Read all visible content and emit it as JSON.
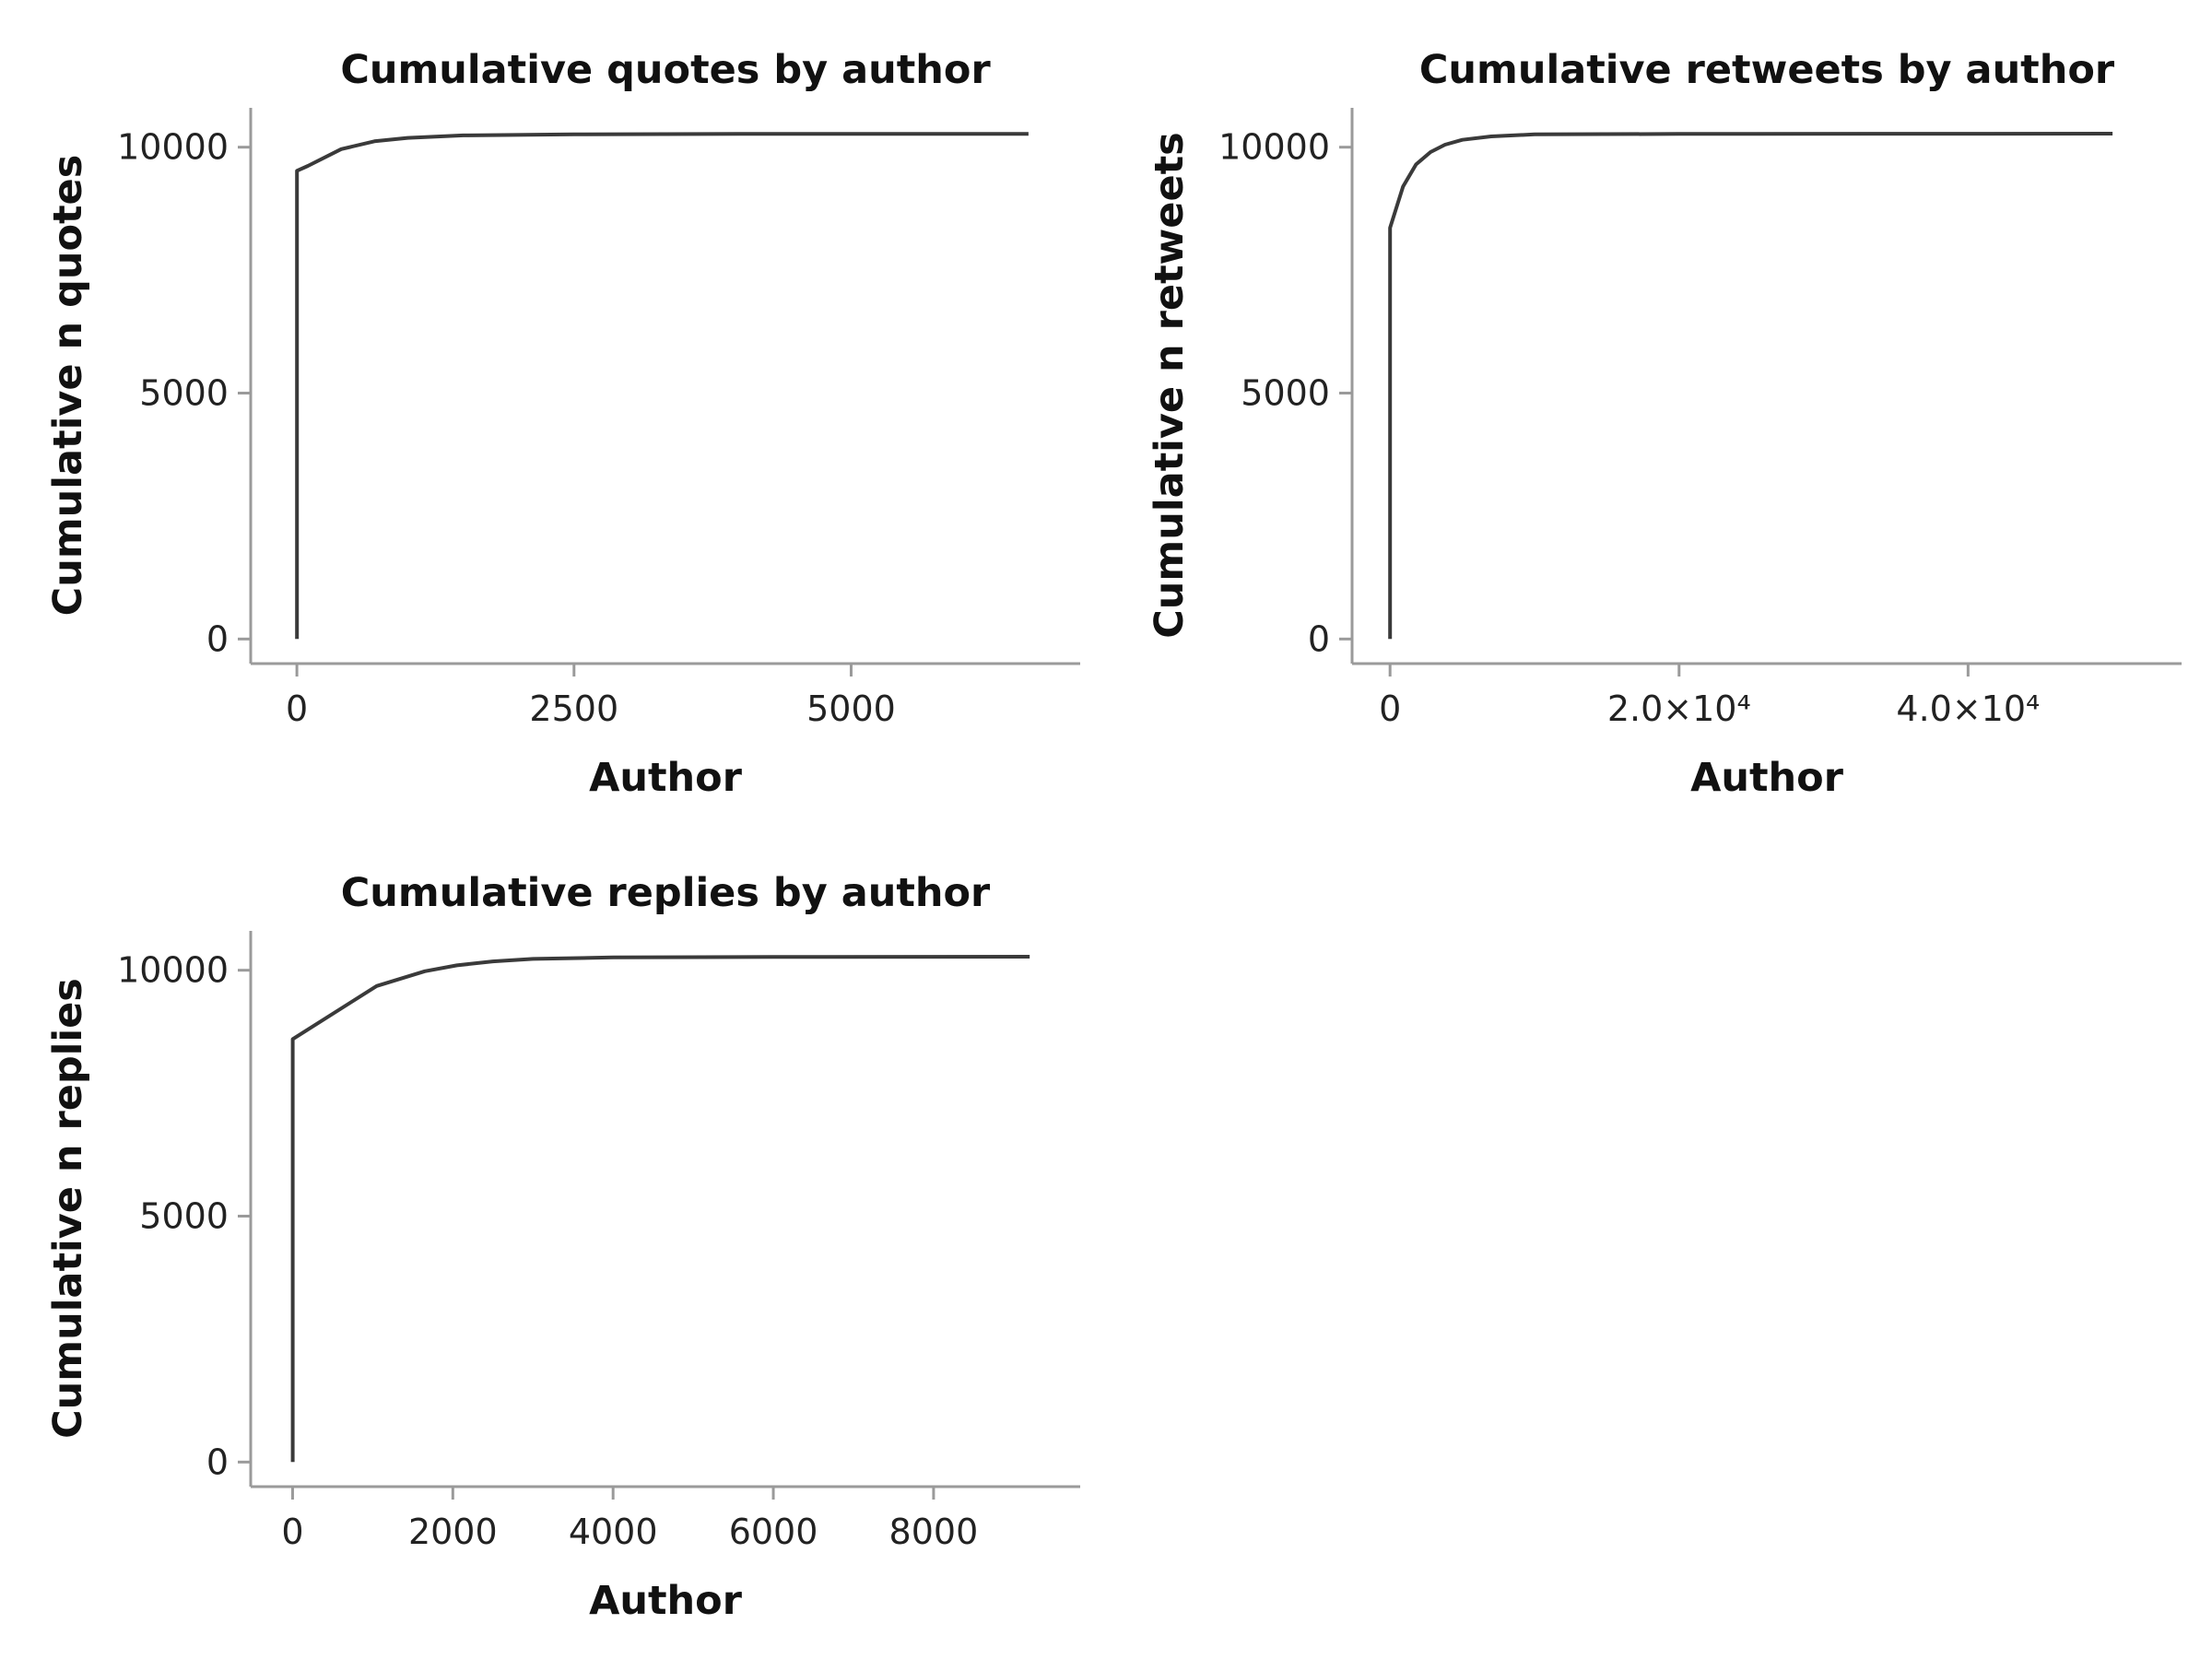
{
  "chart_data": [
    {
      "type": "line",
      "title": "Cumulative quotes by author",
      "xlabel": "Author",
      "ylabel": "Cumulative n quotes",
      "xlim": [
        -400,
        6900
      ],
      "ylim": [
        -500,
        10800
      ],
      "xticks": [
        0,
        2500,
        5000
      ],
      "xtick_labels": [
        "0",
        "2500",
        "5000"
      ],
      "yticks": [
        0,
        5000,
        10000
      ],
      "ytick_labels": [
        "0",
        "5000",
        "10000"
      ],
      "series": [
        {
          "x": [
            1,
            1,
            100,
            400,
            700,
            1000,
            1500,
            2500,
            4000,
            6600
          ],
          "y": [
            0,
            9520,
            9620,
            9960,
            10120,
            10190,
            10240,
            10260,
            10270,
            10270
          ]
        }
      ]
    },
    {
      "type": "line",
      "title": "Cumulative retweets by author",
      "xlabel": "Author",
      "ylabel": "Cumulative n retweets",
      "xlim": [
        -2500,
        53500
      ],
      "ylim": [
        -500,
        10800
      ],
      "xticks": [
        0,
        20000,
        40000
      ],
      "xtick_labels": [
        "0",
        "2.0×10⁴",
        "4.0×10⁴"
      ],
      "yticks": [
        0,
        5000,
        10000
      ],
      "ytick_labels": [
        "0",
        "5000",
        "10000"
      ],
      "series": [
        {
          "x": [
            1,
            1,
            900,
            1800,
            2800,
            3800,
            5000,
            7000,
            10000,
            20000,
            50000
          ],
          "y": [
            0,
            8360,
            9200,
            9650,
            9900,
            10050,
            10150,
            10220,
            10260,
            10270,
            10275
          ]
        }
      ]
    },
    {
      "type": "line",
      "title": "Cumulative replies by author",
      "xlabel": "Author",
      "ylabel": "Cumulative n replies",
      "xlim": [
        -500,
        9600
      ],
      "ylim": [
        -500,
        10800
      ],
      "xticks": [
        0,
        2000,
        4000,
        6000,
        8000
      ],
      "xtick_labels": [
        "0",
        "2000",
        "4000",
        "6000",
        "8000"
      ],
      "yticks": [
        0,
        5000,
        10000
      ],
      "ytick_labels": [
        "0",
        "5000",
        "10000"
      ],
      "series": [
        {
          "x": [
            1,
            1,
            1050,
            1650,
            2050,
            2500,
            3000,
            4000,
            6000,
            9200
          ],
          "y": [
            0,
            8600,
            9680,
            9980,
            10100,
            10180,
            10230,
            10260,
            10270,
            10275
          ]
        }
      ]
    }
  ]
}
